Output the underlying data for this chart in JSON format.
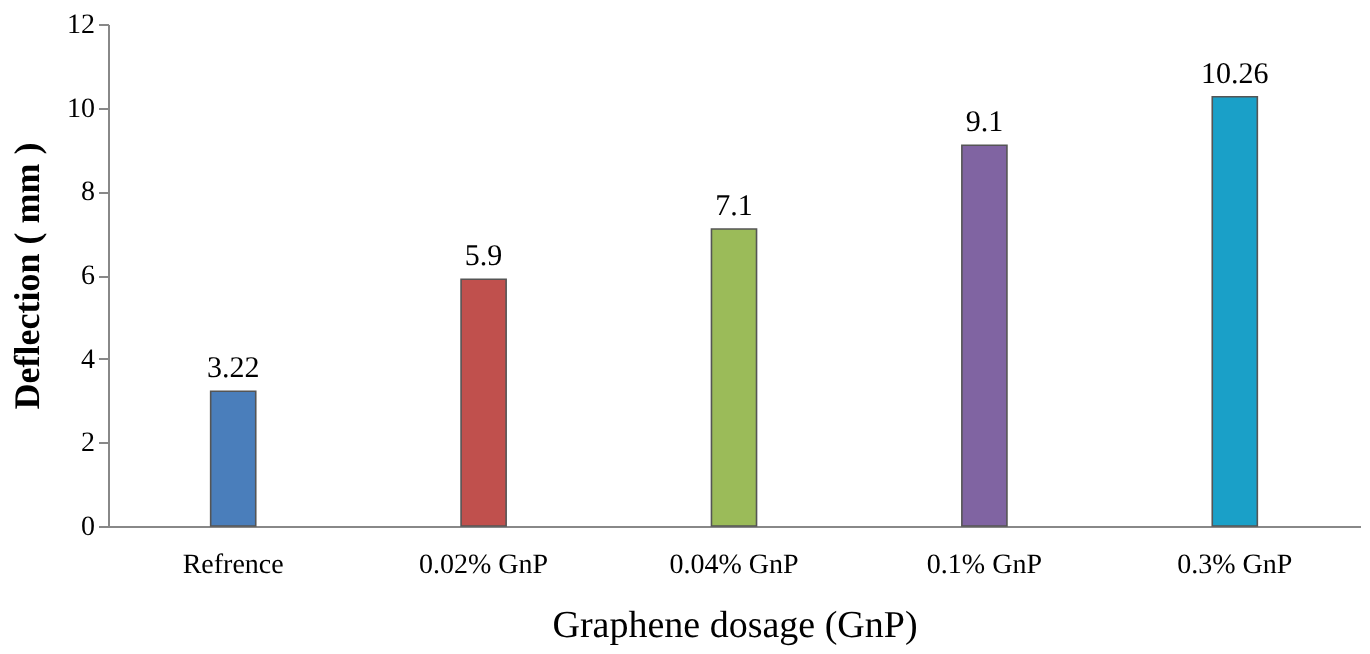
{
  "chart_data": {
    "type": "bar",
    "xlabel": "Graphene dosage (GnP)",
    "ylabel": "Deflection ( mm )",
    "categories": [
      "Refrence",
      "0.02% GnP",
      "0.04% GnP",
      "0.1% GnP",
      "0.3% GnP"
    ],
    "values": [
      3.22,
      5.9,
      7.1,
      9.1,
      10.26
    ],
    "colors": [
      "#4a7ebb",
      "#c0504d",
      "#9bbb59",
      "#8064a2",
      "#1aa0c8"
    ],
    "ylim": [
      0,
      12
    ],
    "yticks": [
      0,
      2,
      4,
      6,
      8,
      10,
      12
    ],
    "grid": false,
    "data_labels": true
  }
}
